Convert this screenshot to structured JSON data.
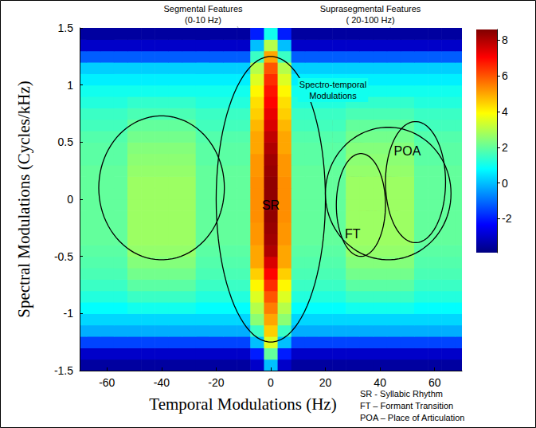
{
  "chart_data": {
    "type": "heatmap",
    "x_label": "Temporal Modulations (Hz)",
    "y_label": "Spectral Modulations (Cycles/kHz)",
    "x": [
      -70,
      -65,
      -60,
      -55,
      -50,
      -45,
      -40,
      -35,
      -30,
      -25,
      -20,
      -15,
      -10,
      -5,
      0,
      5,
      10,
      15,
      20,
      25,
      30,
      35,
      40,
      45,
      50,
      55,
      60,
      65,
      70
    ],
    "y": [
      -1.45,
      -1.35,
      -1.25,
      -1.15,
      -1.05,
      -0.95,
      -0.85,
      -0.75,
      -0.65,
      -0.55,
      -0.45,
      -0.35,
      -0.25,
      -0.15,
      -0.05,
      0.05,
      0.15,
      0.25,
      0.35,
      0.45,
      0.55,
      0.65,
      0.75,
      0.85,
      0.95,
      1.05,
      1.15,
      1.25,
      1.35,
      1.45
    ],
    "cells": [
      [
        -3.5,
        -3.5,
        -3.5,
        -3.5,
        -3.5,
        -3.5,
        -3.5,
        -3.5,
        -3.5,
        -3.5,
        -3.5,
        -3.5,
        -3.5,
        -3,
        0,
        -3,
        -3.5,
        -3.5,
        -3.5,
        -3.5,
        -3.5,
        -3.5,
        -3.5,
        -3.5,
        -3.5,
        -3.5,
        -3.5,
        -3.5,
        -3.5
      ],
      [
        -3,
        -3,
        -3,
        -3,
        -3,
        -3,
        -3,
        -3,
        -3,
        -3,
        -3,
        -3,
        -3,
        -2,
        2,
        -2,
        -3,
        -3,
        -3,
        -3,
        -3,
        -3,
        -3,
        -3,
        -3,
        -3,
        -3,
        -3,
        -3
      ],
      [
        -1.5,
        -1.5,
        -1.5,
        -1.5,
        -1.5,
        -1.5,
        -1.5,
        -1.5,
        -1.5,
        -1.5,
        -1.5,
        -1.5,
        -1.5,
        0,
        3.5,
        0,
        -1.5,
        -1.5,
        -1.5,
        -1.5,
        -1.5,
        -1.5,
        -1.5,
        -1.5,
        -1.5,
        -1.5,
        -1.5,
        -1.5,
        -1.5
      ],
      [
        -0.2,
        -0.2,
        -0.2,
        -0.2,
        -0.2,
        -0.2,
        -0.2,
        -0.2,
        -0.2,
        -0.2,
        -0.2,
        -0.2,
        -0.2,
        1.5,
        4.5,
        1.5,
        -0.2,
        -0.2,
        -0.2,
        -0.2,
        -0.2,
        -0.2,
        -0.2,
        -0.2,
        -0.2,
        -0.2,
        -0.2,
        -0.2,
        -0.2
      ],
      [
        0.3,
        0.3,
        0.3,
        0.3,
        0.3,
        0.3,
        0.3,
        0.3,
        0.3,
        0.3,
        0.3,
        0.3,
        0.3,
        2.5,
        5,
        2.5,
        0.3,
        0.3,
        0.3,
        0.3,
        0.3,
        0.3,
        0.3,
        0.3,
        0.3,
        0.3,
        0.3,
        0.3,
        0.3
      ],
      [
        0.8,
        0.8,
        0.8,
        0.8,
        1,
        1,
        1,
        1,
        1,
        0.8,
        0.8,
        0.8,
        0.8,
        3,
        5.5,
        3,
        0.8,
        0.8,
        0.8,
        0.8,
        1,
        1,
        1,
        1,
        1,
        0.8,
        0.8,
        0.8,
        0.8
      ],
      [
        1.2,
        1.2,
        1.2,
        1.2,
        1.5,
        1.5,
        1.5,
        1.5,
        1.5,
        1.2,
        1.2,
        1.2,
        1.2,
        3.5,
        6,
        3.5,
        1.2,
        1.2,
        1.2,
        1.2,
        1.5,
        1.5,
        1.5,
        1.5,
        1.5,
        1.2,
        1.2,
        1.2,
        1.2
      ],
      [
        1.5,
        1.5,
        1.5,
        1.5,
        1.9,
        1.9,
        1.9,
        1.9,
        1.9,
        1.5,
        1.5,
        1.5,
        1.5,
        4,
        6.5,
        4,
        1.5,
        1.5,
        1.5,
        1.5,
        1.9,
        1.9,
        1.9,
        1.9,
        1.9,
        1.5,
        1.5,
        1.5,
        1.5
      ],
      [
        1.7,
        1.7,
        1.7,
        1.7,
        2.2,
        2.2,
        2.2,
        2.2,
        2.2,
        1.7,
        1.7,
        1.7,
        1.7,
        4.5,
        7,
        4.5,
        1.7,
        1.7,
        1.7,
        1.7,
        2.2,
        2.2,
        2.2,
        2.2,
        2.2,
        1.7,
        1.7,
        1.7,
        1.7
      ],
      [
        1.8,
        1.8,
        1.8,
        1.8,
        2.4,
        2.4,
        2.4,
        2.4,
        2.4,
        1.8,
        1.8,
        1.8,
        1.8,
        5,
        7.5,
        5,
        1.8,
        1.8,
        1.8,
        1.8,
        2.4,
        2.4,
        2.4,
        2.4,
        2.4,
        1.8,
        1.8,
        1.8,
        1.8
      ],
      [
        1.9,
        1.9,
        1.9,
        1.9,
        2.6,
        2.6,
        2.6,
        2.6,
        2.6,
        1.9,
        1.9,
        1.9,
        1.9,
        5,
        8,
        5,
        1.9,
        1.9,
        1.9,
        1.9,
        2.6,
        2.6,
        2.6,
        2.6,
        2.6,
        1.9,
        1.9,
        1.9,
        1.9
      ],
      [
        2,
        2,
        2,
        2,
        2.7,
        2.7,
        2.7,
        2.7,
        2.7,
        2,
        2,
        2,
        2,
        5.2,
        8.2,
        5.2,
        2,
        2,
        2,
        2,
        2.7,
        2.7,
        2.7,
        2.7,
        2.7,
        2,
        2,
        2,
        2
      ],
      [
        2,
        2,
        2,
        2,
        2.7,
        2.7,
        2.7,
        2.7,
        2.7,
        2,
        2,
        2,
        2,
        5.2,
        8.3,
        5.2,
        2,
        2,
        2,
        2,
        2.7,
        2.7,
        2.7,
        2.7,
        2.7,
        2,
        2,
        2,
        2
      ],
      [
        2,
        2,
        2,
        2,
        2.7,
        2.7,
        2.7,
        2.7,
        2.7,
        2,
        2,
        2,
        2,
        5.3,
        8.4,
        5.3,
        2,
        2,
        2,
        2,
        2.7,
        2.7,
        2.7,
        2.7,
        2.7,
        2,
        2,
        2,
        2
      ],
      [
        2,
        2,
        2,
        2,
        2.7,
        2.7,
        2.7,
        2.7,
        2.7,
        2,
        2,
        2,
        2,
        5.3,
        8.4,
        5.3,
        2,
        2,
        2,
        2,
        2.7,
        2.7,
        2.7,
        2.7,
        2.7,
        2,
        2,
        2,
        2
      ],
      [
        2,
        2,
        2,
        2,
        2.7,
        2.7,
        2.7,
        2.7,
        2.7,
        2,
        2,
        2,
        2,
        5.3,
        8.4,
        5.3,
        2,
        2,
        2,
        2,
        2.7,
        2.7,
        2.7,
        2.7,
        2.7,
        2,
        2,
        2,
        2
      ],
      [
        2,
        2,
        2,
        2,
        2.7,
        2.7,
        2.7,
        2.7,
        2.7,
        2,
        2,
        2,
        2,
        5.3,
        8.4,
        5.3,
        2,
        2,
        2,
        2,
        2.7,
        2.7,
        2.7,
        2.7,
        2.7,
        2,
        2,
        2,
        2
      ],
      [
        2,
        2,
        2,
        2,
        2.6,
        2.6,
        2.6,
        2.6,
        2.6,
        2,
        2,
        2,
        2,
        5.2,
        8.3,
        5.2,
        2,
        2,
        2,
        2,
        2.6,
        2.6,
        2.6,
        2.6,
        2.6,
        2,
        2,
        2,
        2
      ],
      [
        1.9,
        1.9,
        1.9,
        1.9,
        2.5,
        2.5,
        2.5,
        2.5,
        2.5,
        1.9,
        1.9,
        1.9,
        1.9,
        5.2,
        8.2,
        5.2,
        1.9,
        1.9,
        1.9,
        1.9,
        2.5,
        2.5,
        2.5,
        2.5,
        2.5,
        1.9,
        1.9,
        1.9,
        1.9
      ],
      [
        1.9,
        1.9,
        1.9,
        1.9,
        2.4,
        2.4,
        2.4,
        2.4,
        2.4,
        1.9,
        1.9,
        1.9,
        1.9,
        5,
        8,
        5,
        1.9,
        1.9,
        1.9,
        1.9,
        2.4,
        2.4,
        2.4,
        2.4,
        2.4,
        1.9,
        1.9,
        1.9,
        1.9
      ],
      [
        1.8,
        1.8,
        1.8,
        1.8,
        2.2,
        2.2,
        2.2,
        2.2,
        2.2,
        1.8,
        1.8,
        1.8,
        1.8,
        5,
        7.8,
        5,
        1.8,
        1.8,
        1.8,
        1.8,
        2.2,
        2.2,
        2.2,
        2.2,
        2.2,
        1.8,
        1.8,
        1.8,
        1.8
      ],
      [
        1.6,
        1.6,
        1.6,
        1.6,
        2,
        2,
        2,
        2,
        2,
        1.6,
        1.6,
        1.6,
        1.6,
        4.8,
        7.5,
        4.8,
        1.6,
        1.6,
        1.6,
        1.6,
        2,
        2,
        2,
        2,
        2,
        1.6,
        1.6,
        1.6,
        1.6
      ],
      [
        1.5,
        1.5,
        1.5,
        1.5,
        1.7,
        1.7,
        1.7,
        1.7,
        1.7,
        1.5,
        1.5,
        1.5,
        1.5,
        4.5,
        7.3,
        4.5,
        1.5,
        1.5,
        1.5,
        1.5,
        1.7,
        1.7,
        1.7,
        1.7,
        1.7,
        1.5,
        1.5,
        1.5,
        1.5
      ],
      [
        1.2,
        1.2,
        1.2,
        1.2,
        1.4,
        1.4,
        1.4,
        1.4,
        1.4,
        1.2,
        1.2,
        1.2,
        1.2,
        4.3,
        7,
        4.3,
        1.2,
        1.2,
        1.2,
        1.2,
        1.4,
        1.4,
        1.4,
        1.4,
        1.4,
        1.2,
        1.2,
        1.2,
        1.2
      ],
      [
        1,
        1,
        1,
        1,
        1,
        1,
        1,
        1,
        1,
        1,
        1,
        1,
        1,
        4,
        6.8,
        4,
        1,
        1,
        1,
        1,
        1,
        1,
        1,
        1,
        1,
        1,
        1,
        1,
        1
      ],
      [
        0.6,
        0.6,
        0.6,
        0.6,
        0.6,
        0.6,
        0.6,
        0.6,
        0.6,
        0.6,
        0.6,
        0.6,
        0.6,
        3.5,
        6.5,
        3.5,
        0.6,
        0.6,
        0.6,
        0.6,
        0.6,
        0.6,
        0.6,
        0.6,
        0.6,
        0.6,
        0.6,
        0.6,
        0.6
      ],
      [
        0.2,
        0.2,
        0.2,
        0.2,
        0.2,
        0.2,
        0.2,
        0.2,
        0.2,
        0.2,
        0.2,
        0.2,
        0.2,
        3,
        6,
        3,
        0.2,
        0.2,
        0.2,
        0.2,
        0.2,
        0.2,
        0.2,
        0.2,
        0.2,
        0.2,
        0.2,
        0.2,
        0.2
      ],
      [
        -1.2,
        -1.2,
        -1.2,
        -1.2,
        -1.2,
        -1.2,
        -1.2,
        -1.2,
        -1.2,
        -1.2,
        -1.2,
        -1.2,
        -1.2,
        1.5,
        5,
        1.5,
        -1.2,
        -1.2,
        -1.2,
        -1.2,
        -1.2,
        -1.2,
        -1.2,
        -1.2,
        -1.2,
        -1.2,
        -1.2,
        -1.2,
        -1.2
      ],
      [
        -3,
        -3,
        -3,
        -3,
        -3,
        -3,
        -3,
        -3,
        -3,
        -3,
        -3,
        -3,
        -3,
        0,
        3,
        0,
        -3,
        -3,
        -3,
        -3,
        -3,
        -3,
        -3,
        -3,
        -3,
        -3,
        -3,
        -3,
        -3
      ],
      [
        -3.5,
        -3.5,
        -3.5,
        -3.5,
        -3.5,
        -3.5,
        -3.5,
        -3.5,
        -3.5,
        -3.5,
        -3.5,
        -3.5,
        -3.5,
        -2,
        1,
        -2,
        -3.5,
        -3.5,
        -3.5,
        -3.5,
        -3.5,
        -3.5,
        -3.5,
        -3.5,
        -3.5,
        -3.5,
        -3.5,
        -3.5,
        -3.5
      ]
    ],
    "xlim": [
      -70,
      70
    ],
    "xticks": [
      -60,
      -40,
      -20,
      0,
      20,
      40,
      60
    ],
    "ylim": [
      -1.5,
      1.5
    ],
    "yticks": [
      -1.5,
      -1,
      -0.5,
      0,
      0.5,
      1,
      1.5
    ],
    "colorbar": {
      "range": [
        -3.9,
        8.6
      ],
      "ticks": [
        -2,
        0,
        2,
        4,
        6,
        8
      ]
    },
    "grid": false,
    "regions": [
      {
        "center": [
          0,
          0
        ],
        "radii": [
          20,
          1.25
        ],
        "label": "SR",
        "label_at": [
          0,
          -0.05
        ]
      },
      {
        "center": [
          -40,
          0.1
        ],
        "radii": [
          23,
          0.63
        ]
      },
      {
        "center": [
          43,
          0.05
        ],
        "radii": [
          23,
          0.58
        ]
      },
      {
        "center": [
          33,
          -0.05
        ],
        "radii": [
          9,
          0.45
        ],
        "label": "FT",
        "label_at": [
          30,
          -0.3
        ]
      },
      {
        "center": [
          53,
          0.15
        ],
        "radii": [
          11,
          0.53
        ],
        "label": "POA",
        "label_at": [
          50,
          0.42
        ]
      }
    ],
    "annotations": [
      {
        "text": [
          "Segmental Features",
          "(0-10 Hz)"
        ]
      },
      {
        "text": [
          "Suprasegmental Features",
          "( 20-100 Hz)"
        ]
      },
      {
        "text": [
          "Spectro-temporal",
          "Modulations"
        ]
      }
    ],
    "key": [
      "SR - Syllabic Rhythm",
      "FT – Formant Transition",
      "POA – Place of Articulation"
    ]
  }
}
